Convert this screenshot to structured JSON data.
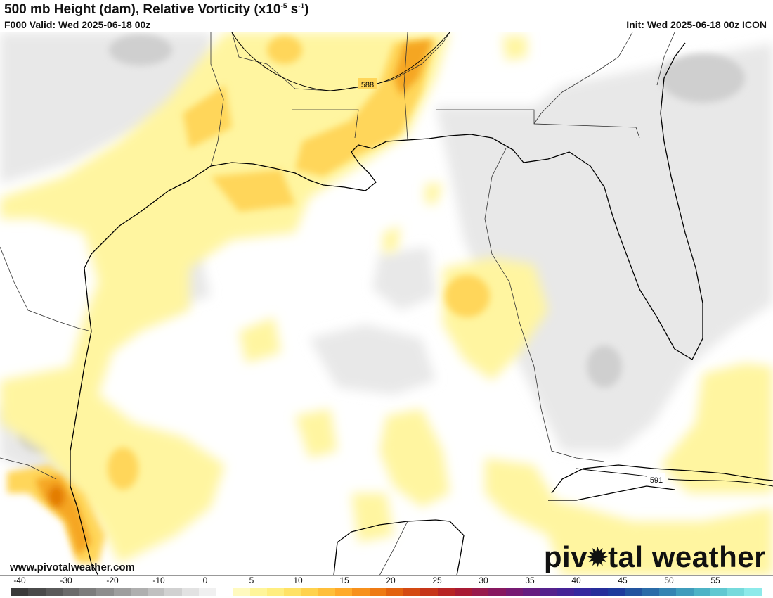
{
  "header": {
    "title": "500 mb Height (dam), Relative Vorticity (x10",
    "title_exp1": "-5",
    "title_mid": " s",
    "title_exp2": "-1",
    "title_end": ")",
    "valid": "F000 Valid: Wed 2025-06-18 00z",
    "init": "Init: Wed 2025-06-18 00z ICON"
  },
  "map": {
    "region": "Gulf of Mexico",
    "contours": [
      {
        "label": "588"
      },
      {
        "label": "591"
      }
    ],
    "fill_colors": {
      "neg_light": "#e8e8e8",
      "neg_mid": "#cfcfcf",
      "pos_light": "#fff5a0",
      "pos_mid": "#ffd65a",
      "pos_strong": "#f5a623",
      "pos_max": "#e37b00"
    }
  },
  "footer": {
    "website": "www.pivotalweather.com",
    "brand_a": "piv",
    "brand_b": "tal weather"
  },
  "colorbar": {
    "ticks": [
      "-40",
      "-30",
      "-20",
      "-10",
      "0",
      "5",
      "10",
      "15",
      "20",
      "25",
      "30",
      "35",
      "40",
      "45",
      "50",
      "55"
    ],
    "colors": [
      "#3a3a3a",
      "#4a4a4a",
      "#5a5a5a",
      "#6b6b6b",
      "#7c7c7c",
      "#8d8d8d",
      "#9e9e9e",
      "#afafaf",
      "#c0c0c0",
      "#d1d1d1",
      "#e2e2e2",
      "#f0f0f0",
      "#ffffff",
      "#fffabf",
      "#fff59a",
      "#ffee80",
      "#ffe266",
      "#ffd24d",
      "#ffbf3a",
      "#ffaa2a",
      "#f7911c",
      "#ee7a14",
      "#e2620f",
      "#d44a12",
      "#c63519",
      "#b72424",
      "#a81a34",
      "#981a4c",
      "#87185f",
      "#761a72",
      "#651d80",
      "#55218c",
      "#452396",
      "#35279e",
      "#262d9a",
      "#1e3a9c",
      "#22539f",
      "#2a6ba8",
      "#3484b2",
      "#3f9cbc",
      "#4db3c6",
      "#60c8d1",
      "#76dadc",
      "#8deaea"
    ]
  }
}
